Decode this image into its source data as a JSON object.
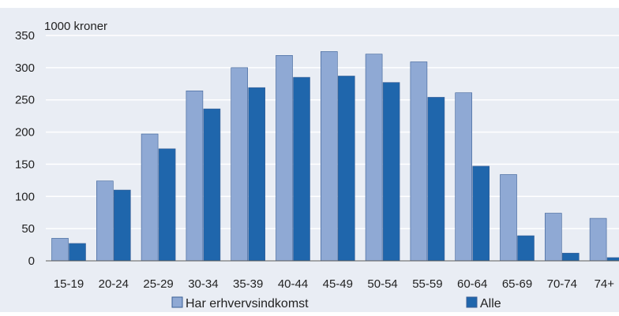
{
  "chart_data": {
    "type": "bar",
    "unit_label": "1000 kroner",
    "categories": [
      "15-19",
      "20-24",
      "25-29",
      "30-34",
      "35-39",
      "40-44",
      "45-49",
      "50-54",
      "55-59",
      "60-64",
      "65-69",
      "70-74",
      "74+"
    ],
    "series": [
      {
        "name": "Har erhvervsindkomst",
        "color": "#8fa9d4",
        "values": [
          35,
          124,
          197,
          264,
          300,
          319,
          325,
          321,
          309,
          261,
          134,
          74,
          66
        ]
      },
      {
        "name": "Alle",
        "color": "#1f66ac",
        "values": [
          27,
          110,
          174,
          236,
          269,
          285,
          287,
          277,
          254,
          147,
          39,
          12,
          5
        ]
      }
    ],
    "ylim": [
      0,
      350
    ],
    "yticks": [
      "0",
      "50",
      "100",
      "150",
      "200",
      "250",
      "300",
      "350"
    ],
    "grid": true,
    "legend_position": "bottom"
  }
}
